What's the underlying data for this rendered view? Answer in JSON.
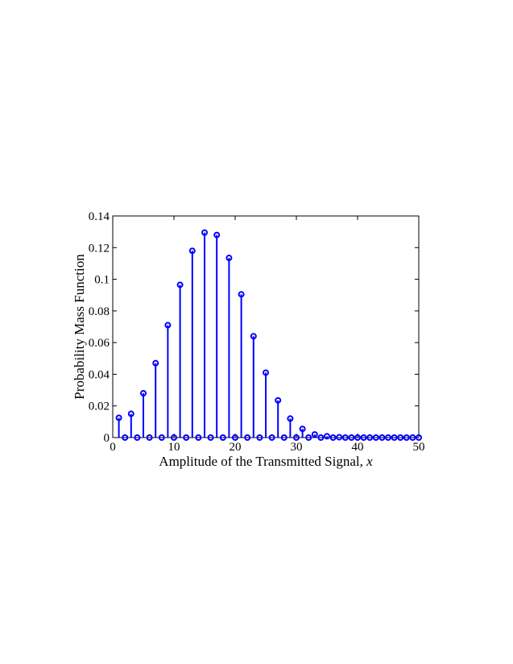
{
  "chart_data": {
    "type": "stem",
    "title": "",
    "xlabel": "Amplitude of the Transmitted Signal, ",
    "xlabel_var": "x",
    "ylabel": "Probability Mass Function",
    "xlim": [
      0,
      50
    ],
    "ylim": [
      0,
      0.14
    ],
    "grid": false,
    "legend": "none",
    "color": "#0000ff",
    "x_ticks": [
      0,
      10,
      20,
      30,
      40,
      50
    ],
    "x_tick_labels": [
      "0",
      "10",
      "20",
      "30",
      "40",
      "50"
    ],
    "y_ticks": [
      0,
      0.02,
      0.04,
      0.06,
      0.08,
      0.1,
      0.12,
      0.14
    ],
    "y_tick_labels": [
      "0",
      "0.02",
      "0.04",
      "0.06",
      "0.08",
      "0.1",
      "0.12",
      "0.14"
    ],
    "x": [
      1,
      2,
      3,
      4,
      5,
      6,
      7,
      8,
      9,
      10,
      11,
      12,
      13,
      14,
      15,
      16,
      17,
      18,
      19,
      20,
      21,
      22,
      23,
      24,
      25,
      26,
      27,
      28,
      29,
      30,
      31,
      32,
      33,
      34,
      35,
      36,
      37,
      38,
      39,
      40,
      41,
      42,
      43,
      44,
      45,
      46,
      47,
      48,
      49,
      50
    ],
    "values": [
      0.0125,
      0,
      0.015,
      0,
      0.028,
      0,
      0.047,
      0,
      0.071,
      0,
      0.0965,
      0,
      0.118,
      0,
      0.1295,
      0,
      0.128,
      0,
      0.1135,
      0,
      0.0905,
      0,
      0.064,
      0,
      0.041,
      0,
      0.0235,
      0,
      0.012,
      0,
      0.0055,
      0,
      0.002,
      0,
      0.0008,
      0,
      0.0002,
      0,
      0,
      0,
      0,
      0,
      0,
      0,
      0,
      0,
      0,
      0,
      0,
      0
    ]
  }
}
